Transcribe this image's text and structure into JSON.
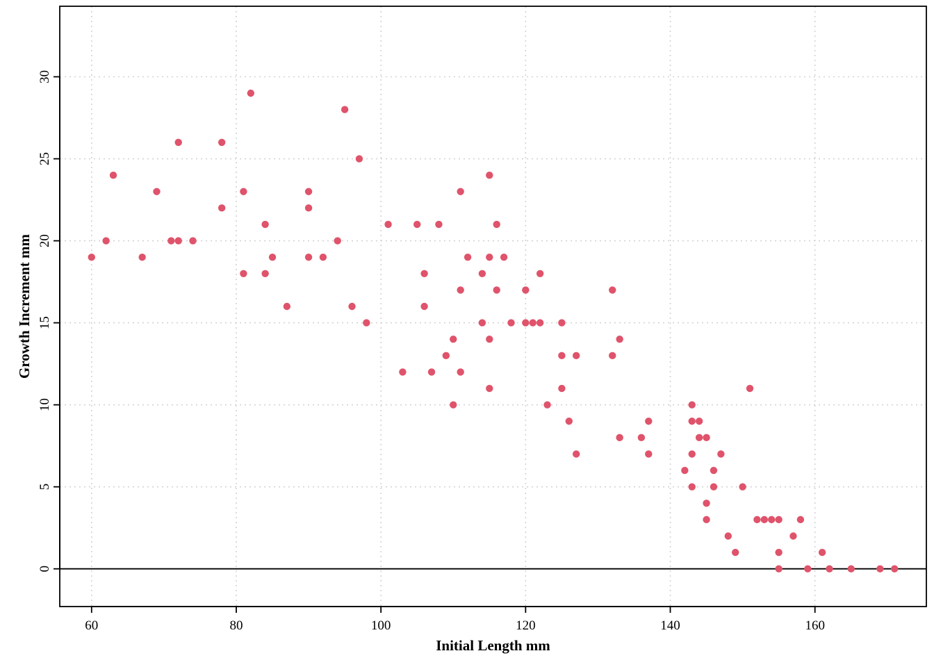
{
  "chart_data": {
    "type": "scatter",
    "title": "",
    "xlabel": "Initial Length mm",
    "ylabel": "Growth Increment mm",
    "xlim": [
      55.6,
      175.4
    ],
    "ylim": [
      -2.3,
      34.3
    ],
    "xticks": [
      60,
      80,
      100,
      120,
      140,
      160
    ],
    "yticks": [
      0,
      5,
      10,
      15,
      20,
      25,
      30
    ],
    "grid": true,
    "hline": 0,
    "point_color": "#DF536B",
    "points": [
      [
        60,
        19
      ],
      [
        62,
        20
      ],
      [
        63,
        24
      ],
      [
        67,
        19
      ],
      [
        69,
        23
      ],
      [
        71,
        20
      ],
      [
        72,
        20
      ],
      [
        72,
        26
      ],
      [
        74,
        20
      ],
      [
        78,
        26
      ],
      [
        78,
        22
      ],
      [
        81,
        23
      ],
      [
        81,
        18
      ],
      [
        82,
        29
      ],
      [
        84,
        21
      ],
      [
        84,
        18
      ],
      [
        85,
        19
      ],
      [
        87,
        16
      ],
      [
        90,
        23
      ],
      [
        90,
        22
      ],
      [
        90,
        19
      ],
      [
        92,
        19
      ],
      [
        94,
        20
      ],
      [
        95,
        28
      ],
      [
        96,
        16
      ],
      [
        97,
        25
      ],
      [
        98,
        15
      ],
      [
        101,
        21
      ],
      [
        103,
        12
      ],
      [
        105,
        21
      ],
      [
        106,
        18
      ],
      [
        106,
        16
      ],
      [
        107,
        12
      ],
      [
        108,
        21
      ],
      [
        109,
        13
      ],
      [
        110,
        14
      ],
      [
        110,
        10
      ],
      [
        111,
        23
      ],
      [
        111,
        17
      ],
      [
        111,
        12
      ],
      [
        112,
        19
      ],
      [
        114,
        18
      ],
      [
        114,
        15
      ],
      [
        115,
        24
      ],
      [
        115,
        19
      ],
      [
        115,
        14
      ],
      [
        115,
        11
      ],
      [
        116,
        21
      ],
      [
        116,
        17
      ],
      [
        117,
        19
      ],
      [
        118,
        15
      ],
      [
        120,
        17
      ],
      [
        120,
        15
      ],
      [
        121,
        15
      ],
      [
        122,
        18
      ],
      [
        122,
        15
      ],
      [
        123,
        10
      ],
      [
        125,
        15
      ],
      [
        125,
        13
      ],
      [
        125,
        11
      ],
      [
        126,
        9
      ],
      [
        127,
        13
      ],
      [
        127,
        7
      ],
      [
        132,
        17
      ],
      [
        132,
        13
      ],
      [
        133,
        14
      ],
      [
        133,
        8
      ],
      [
        136,
        8
      ],
      [
        137,
        9
      ],
      [
        137,
        7
      ],
      [
        142,
        6
      ],
      [
        143,
        10
      ],
      [
        143,
        9
      ],
      [
        143,
        7
      ],
      [
        143,
        5
      ],
      [
        144,
        9
      ],
      [
        144,
        8
      ],
      [
        145,
        8
      ],
      [
        145,
        4
      ],
      [
        145,
        3
      ],
      [
        146,
        6
      ],
      [
        146,
        5
      ],
      [
        147,
        7
      ],
      [
        148,
        2
      ],
      [
        149,
        1
      ],
      [
        150,
        5
      ],
      [
        151,
        11
      ],
      [
        152,
        3
      ],
      [
        153,
        3
      ],
      [
        154,
        3
      ],
      [
        155,
        3
      ],
      [
        155,
        1
      ],
      [
        155,
        0
      ],
      [
        157,
        2
      ],
      [
        158,
        3
      ],
      [
        159,
        0
      ],
      [
        161,
        1
      ],
      [
        162,
        0
      ],
      [
        165,
        0
      ],
      [
        169,
        0
      ],
      [
        171,
        0
      ]
    ]
  }
}
